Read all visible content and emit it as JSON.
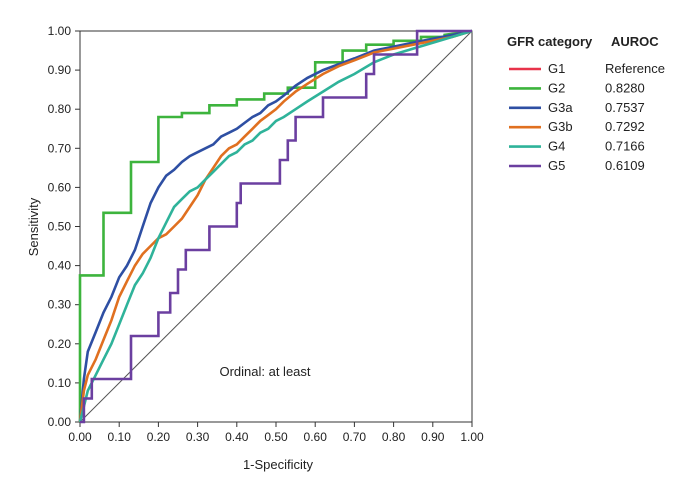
{
  "chart_data": {
    "type": "line",
    "title": "",
    "xlabel": "1-Specificity",
    "ylabel": "Sensitivity",
    "xlim": [
      0,
      1
    ],
    "ylim": [
      0,
      1
    ],
    "x_ticks": [
      "0.00",
      "0.10",
      "0.20",
      "0.30",
      "0.40",
      "0.50",
      "0.60",
      "0.70",
      "0.80",
      "0.90",
      "1.00"
    ],
    "y_ticks": [
      "0.00",
      "0.10",
      "0.20",
      "0.30",
      "0.40",
      "0.50",
      "0.60",
      "0.70",
      "0.80",
      "0.90",
      "1.00"
    ],
    "grid": false,
    "legend_position": "right",
    "annotation": "Ordinal: at least",
    "legend": {
      "header_category": "GFR category",
      "header_auroc": "AUROC"
    },
    "reference_line": {
      "x": [
        0,
        1
      ],
      "y": [
        0,
        1
      ],
      "color": "#555555"
    },
    "series": [
      {
        "name": "G1",
        "auroc": "Reference",
        "color": "#e8334a",
        "x": [
          0,
          1
        ],
        "y": [
          0,
          1
        ],
        "visible": false
      },
      {
        "name": "G2",
        "auroc": "0.8280",
        "color": "#3db43d",
        "x": [
          0,
          0,
          0.06,
          0.06,
          0.13,
          0.13,
          0.2,
          0.2,
          0.26,
          0.26,
          0.33,
          0.33,
          0.4,
          0.4,
          0.47,
          0.47,
          0.53,
          0.53,
          0.6,
          0.6,
          0.67,
          0.67,
          0.73,
          0.73,
          0.8,
          0.8,
          0.87,
          0.87,
          0.93,
          0.93,
          1.0
        ],
        "y": [
          0,
          0.375,
          0.375,
          0.535,
          0.535,
          0.665,
          0.665,
          0.78,
          0.78,
          0.79,
          0.79,
          0.81,
          0.81,
          0.825,
          0.825,
          0.84,
          0.84,
          0.855,
          0.855,
          0.92,
          0.92,
          0.95,
          0.95,
          0.965,
          0.965,
          0.975,
          0.975,
          0.985,
          0.985,
          0.99,
          1.0
        ]
      },
      {
        "name": "G3a",
        "auroc": "0.7537",
        "color": "#2e4fa3",
        "x": [
          0,
          0.01,
          0.02,
          0.04,
          0.06,
          0.08,
          0.1,
          0.12,
          0.14,
          0.16,
          0.18,
          0.2,
          0.22,
          0.24,
          0.26,
          0.28,
          0.3,
          0.32,
          0.34,
          0.36,
          0.38,
          0.4,
          0.42,
          0.44,
          0.46,
          0.48,
          0.5,
          0.52,
          0.55,
          0.58,
          0.62,
          0.66,
          0.7,
          0.75,
          0.8,
          0.85,
          0.9,
          0.95,
          1.0
        ],
        "y": [
          0,
          0.11,
          0.18,
          0.23,
          0.28,
          0.32,
          0.37,
          0.4,
          0.44,
          0.5,
          0.56,
          0.6,
          0.63,
          0.645,
          0.665,
          0.68,
          0.69,
          0.7,
          0.71,
          0.73,
          0.74,
          0.75,
          0.765,
          0.78,
          0.79,
          0.81,
          0.82,
          0.835,
          0.86,
          0.88,
          0.9,
          0.915,
          0.93,
          0.95,
          0.96,
          0.97,
          0.98,
          0.99,
          1.0
        ]
      },
      {
        "name": "G3b",
        "auroc": "0.7292",
        "color": "#e07020",
        "x": [
          0,
          0.01,
          0.02,
          0.04,
          0.06,
          0.08,
          0.1,
          0.12,
          0.14,
          0.16,
          0.18,
          0.2,
          0.22,
          0.24,
          0.26,
          0.28,
          0.3,
          0.32,
          0.34,
          0.36,
          0.38,
          0.4,
          0.42,
          0.44,
          0.46,
          0.48,
          0.5,
          0.52,
          0.55,
          0.58,
          0.62,
          0.66,
          0.7,
          0.75,
          0.8,
          0.85,
          0.9,
          0.95,
          1.0
        ],
        "y": [
          0,
          0.08,
          0.12,
          0.16,
          0.21,
          0.26,
          0.32,
          0.36,
          0.4,
          0.43,
          0.45,
          0.47,
          0.48,
          0.5,
          0.52,
          0.55,
          0.58,
          0.62,
          0.65,
          0.68,
          0.7,
          0.71,
          0.73,
          0.75,
          0.77,
          0.785,
          0.8,
          0.82,
          0.845,
          0.865,
          0.89,
          0.91,
          0.925,
          0.945,
          0.955,
          0.965,
          0.975,
          0.985,
          1.0
        ]
      },
      {
        "name": "G4",
        "auroc": "0.7166",
        "color": "#2fb39a",
        "x": [
          0,
          0.01,
          0.02,
          0.04,
          0.06,
          0.08,
          0.1,
          0.12,
          0.14,
          0.16,
          0.18,
          0.2,
          0.22,
          0.24,
          0.26,
          0.28,
          0.3,
          0.32,
          0.34,
          0.36,
          0.38,
          0.4,
          0.42,
          0.44,
          0.46,
          0.48,
          0.5,
          0.52,
          0.55,
          0.58,
          0.62,
          0.66,
          0.7,
          0.75,
          0.8,
          0.85,
          0.9,
          0.95,
          1.0
        ],
        "y": [
          0,
          0.04,
          0.08,
          0.12,
          0.16,
          0.2,
          0.25,
          0.3,
          0.35,
          0.38,
          0.42,
          0.47,
          0.51,
          0.55,
          0.57,
          0.59,
          0.6,
          0.62,
          0.64,
          0.66,
          0.68,
          0.69,
          0.71,
          0.72,
          0.74,
          0.75,
          0.77,
          0.78,
          0.8,
          0.82,
          0.845,
          0.87,
          0.89,
          0.92,
          0.94,
          0.955,
          0.97,
          0.985,
          1.0
        ]
      },
      {
        "name": "G5",
        "auroc": "0.6109",
        "color": "#6b3fa0",
        "x": [
          0,
          0.01,
          0.01,
          0.03,
          0.03,
          0.07,
          0.07,
          0.13,
          0.13,
          0.2,
          0.2,
          0.23,
          0.23,
          0.25,
          0.25,
          0.27,
          0.27,
          0.33,
          0.33,
          0.4,
          0.4,
          0.41,
          0.41,
          0.51,
          0.51,
          0.53,
          0.53,
          0.55,
          0.55,
          0.62,
          0.62,
          0.73,
          0.73,
          0.75,
          0.75,
          0.86,
          0.86,
          1.0
        ],
        "y": [
          0,
          0,
          0.06,
          0.06,
          0.11,
          0.11,
          0.11,
          0.11,
          0.22,
          0.22,
          0.28,
          0.28,
          0.33,
          0.33,
          0.39,
          0.39,
          0.44,
          0.44,
          0.5,
          0.5,
          0.56,
          0.56,
          0.61,
          0.61,
          0.67,
          0.67,
          0.72,
          0.72,
          0.78,
          0.78,
          0.83,
          0.83,
          0.89,
          0.89,
          0.94,
          0.94,
          1.0,
          1.0
        ]
      }
    ]
  }
}
